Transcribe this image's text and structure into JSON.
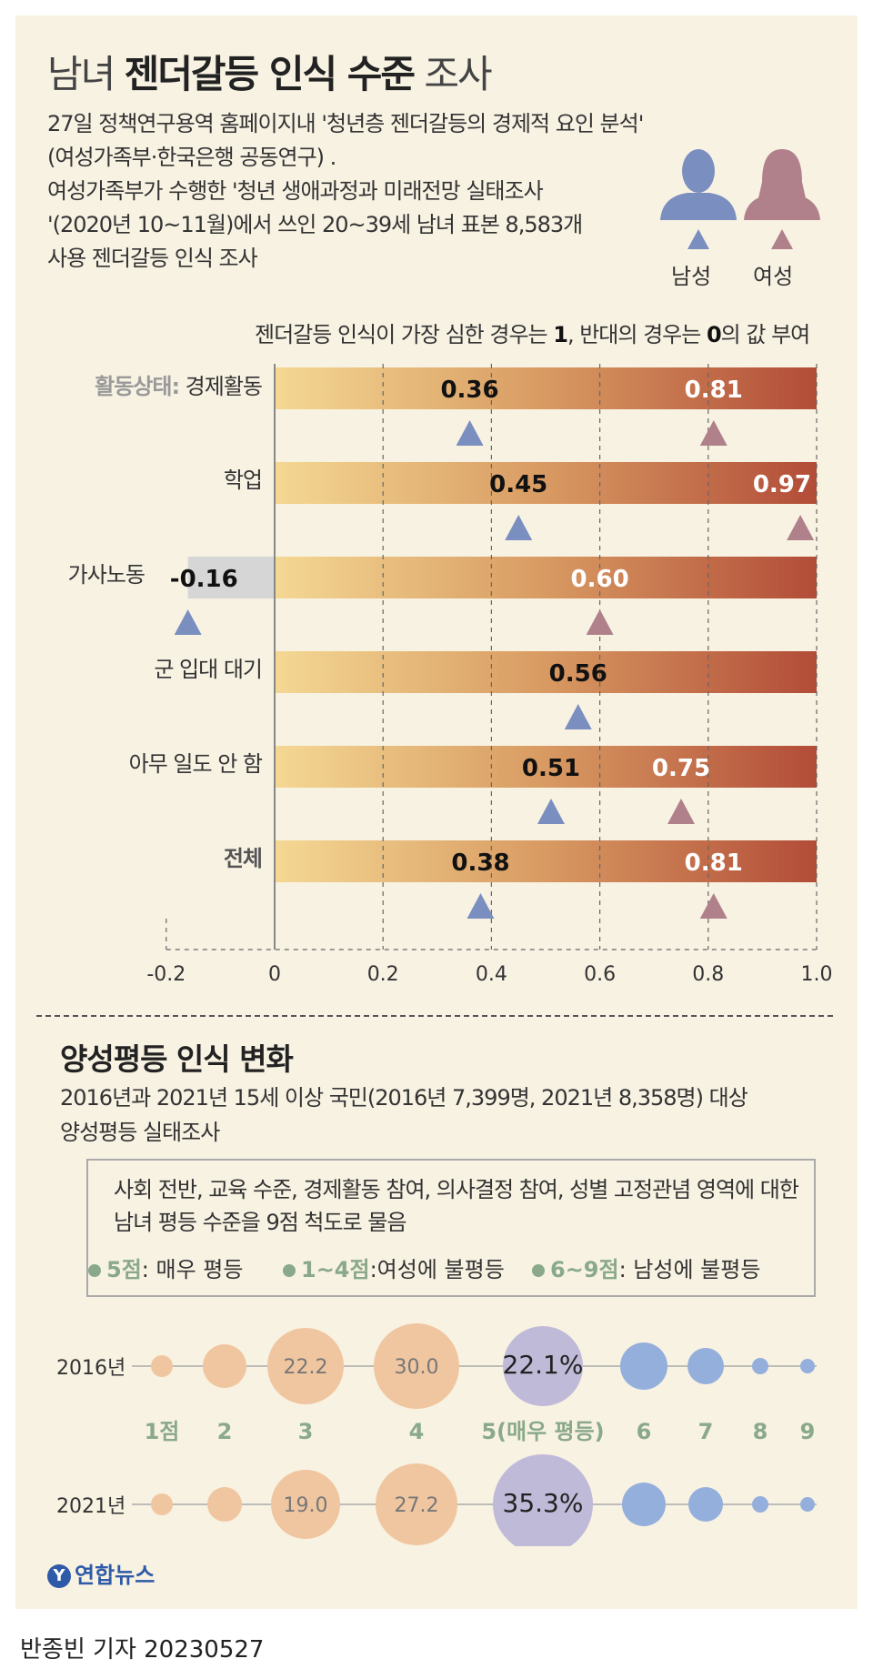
{
  "header": {
    "title_light": "남녀",
    "title_bold": "젠더갈등 인식 수준",
    "title_end": "조사",
    "intro_lines": [
      "27일 정책연구용역 홈페이지내 '청년층 젠더갈등의 경제적 요인 분석'",
      "(여성가족부·한국은행 공동연구) .",
      "여성가족부가 수행한 '청년 생애과정과 미래전망 실태조사",
      "'(2020년 10~11월)에서 쓰인 20~39세 남녀 표본 8,583개",
      "사용 젠더갈등 인식 조사"
    ],
    "male_label": "남성",
    "female_label": "여성",
    "male_color": "#7a8fc0",
    "female_color": "#b0818a"
  },
  "note": {
    "pre": "젠더갈등 인식이 가장 심한 경우는 ",
    "one": "1",
    "mid": ", 반대의 경우는 ",
    "zero": "0",
    "post": "의 값 부여"
  },
  "chart_data": [
    {
      "type": "bar",
      "title": "젠더갈등 인식 수준",
      "categories": [
        "활동상태: 경제활동",
        "학업",
        "가사노동",
        "군 입대 대기",
        "아무 일도 안 함",
        "전체"
      ],
      "category_prefix": "활동상태:",
      "category_first_rest": " 경제활동",
      "series": [
        {
          "name": "남성",
          "values": [
            0.36,
            0.45,
            -0.16,
            0.56,
            0.51,
            0.38
          ],
          "labels": [
            "0.36",
            "0.45",
            "-0.16",
            "0.56",
            "0.51",
            "0.38"
          ]
        },
        {
          "name": "여성",
          "values": [
            0.81,
            0.97,
            0.6,
            null,
            0.75,
            0.81
          ],
          "labels": [
            "0.81",
            "0.97",
            "0.60",
            "",
            "0.75",
            "0.81"
          ]
        }
      ],
      "xlim": [
        -0.2,
        1.0
      ],
      "xticks": [
        "-0.2",
        "0",
        "0.2",
        "0.4",
        "0.6",
        "0.8",
        "1.0"
      ],
      "xtick_values": [
        -0.2,
        0,
        0.2,
        0.4,
        0.6,
        0.8,
        1.0
      ]
    },
    {
      "type": "scatter",
      "title": "양성평등 인식 변화",
      "x": [
        "1점",
        "2",
        "3",
        "4",
        "5(매우 평등)",
        "6",
        "7",
        "8",
        "9"
      ],
      "series": [
        {
          "name": "2016년",
          "values": [
            null,
            null,
            22.2,
            30.0,
            22.1,
            null,
            null,
            null,
            null
          ],
          "labels": [
            "",
            "",
            "22.2",
            "30.0",
            "22.1%",
            "",
            "",
            "",
            ""
          ]
        },
        {
          "name": "2021년",
          "values": [
            null,
            null,
            19.0,
            27.2,
            35.3,
            null,
            null,
            null,
            null
          ],
          "labels": [
            "",
            "",
            "19.0",
            "27.2",
            "35.3%",
            "",
            "",
            "",
            ""
          ]
        }
      ],
      "bubble_size_index": [
        1,
        2,
        3,
        4,
        5,
        3,
        2,
        1,
        0
      ],
      "colors": {
        "female_unequal": "#f0c6a0",
        "equal": "#c0bad9",
        "male_unequal": "#95afdc"
      }
    }
  ],
  "section2": {
    "title": "양성평등 인식 변화",
    "desc": [
      "2016년과 2021년 15세 이상 국민(2016년 7,399명, 2021년 8,358명) 대상",
      "양성평등 실태조사"
    ],
    "box_lines": [
      "사회 전반, 교육 수준, 경제활동 참여, 의사결정 참여, 성별 고정관념 영역에 대한",
      "남녀 평등 수준을 9점 척도로 물음"
    ],
    "legend": [
      {
        "key": "5점",
        "text": ": 매우 평등"
      },
      {
        "key": "1~4점",
        "text": ":여성에 불평등"
      },
      {
        "key": "6~9점",
        "text": ": 남성에 불평등"
      }
    ]
  },
  "footer": {
    "logo_glyph": "Y",
    "logo": "연합뉴스",
    "byline": "반종빈 기자  20230527"
  }
}
